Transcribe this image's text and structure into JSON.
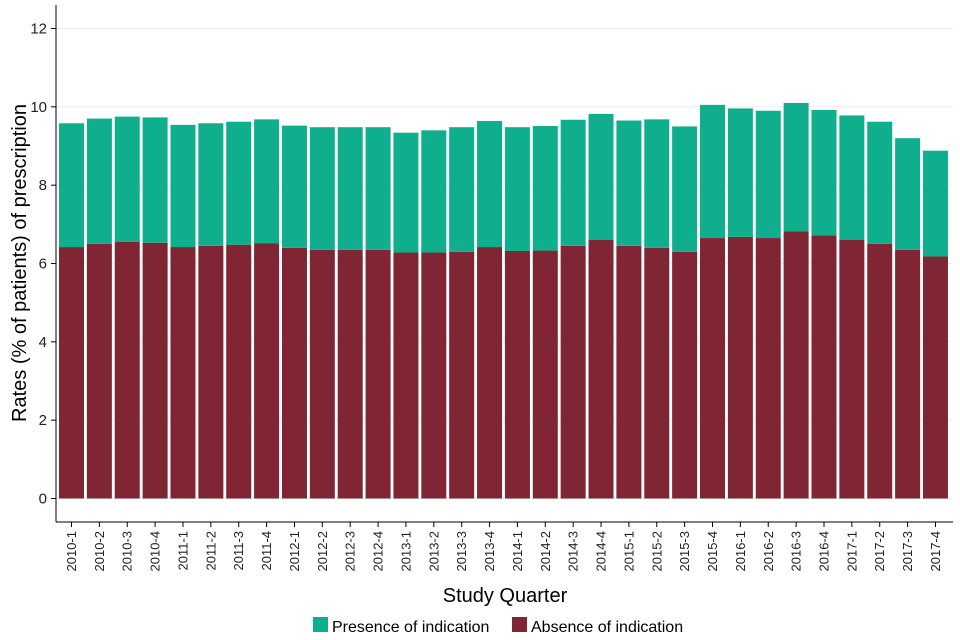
{
  "chart_data": {
    "type": "bar",
    "stacked": true,
    "title": "",
    "xlabel": "Study Quarter",
    "ylabel": "Rates (% of patients) of prescription",
    "ylim": [
      -0.6,
      12.6
    ],
    "yticks": [
      0,
      2,
      4,
      6,
      8,
      10,
      12
    ],
    "grid": true,
    "legend_position": "bottom",
    "categories": [
      "2010-1",
      "2010-2",
      "2010-3",
      "2010-4",
      "2011-1",
      "2011-2",
      "2011-3",
      "2011-4",
      "2012-1",
      "2012-2",
      "2012-3",
      "2012-4",
      "2013-1",
      "2013-2",
      "2013-3",
      "2013-4",
      "2014-1",
      "2014-2",
      "2014-3",
      "2014-4",
      "2015-1",
      "2015-2",
      "2015-3",
      "2015-4",
      "2016-1",
      "2016-2",
      "2016-3",
      "2016-4",
      "2017-1",
      "2017-2",
      "2017-3",
      "2017-4"
    ],
    "series": [
      {
        "name": "Absence of indication",
        "color": "#7f2533",
        "values": [
          6.42,
          6.5,
          6.55,
          6.53,
          6.42,
          6.45,
          6.48,
          6.52,
          6.4,
          6.35,
          6.35,
          6.35,
          6.28,
          6.28,
          6.3,
          6.42,
          6.32,
          6.33,
          6.45,
          6.6,
          6.45,
          6.4,
          6.3,
          6.65,
          6.68,
          6.65,
          6.82,
          6.72,
          6.6,
          6.5,
          6.35,
          6.18
        ]
      },
      {
        "name": "Presence of indication",
        "color": "#0faf8e",
        "values": [
          3.16,
          3.2,
          3.2,
          3.2,
          3.12,
          3.13,
          3.14,
          3.16,
          3.12,
          3.13,
          3.13,
          3.13,
          3.06,
          3.12,
          3.18,
          3.22,
          3.16,
          3.18,
          3.22,
          3.22,
          3.2,
          3.28,
          3.2,
          3.4,
          3.28,
          3.25,
          3.28,
          3.2,
          3.18,
          3.12,
          2.85,
          2.7
        ]
      }
    ],
    "legend": [
      {
        "name": "Presence of indication",
        "color": "#0faf8e"
      },
      {
        "name": "Absence of indication",
        "color": "#7f2533"
      }
    ]
  }
}
